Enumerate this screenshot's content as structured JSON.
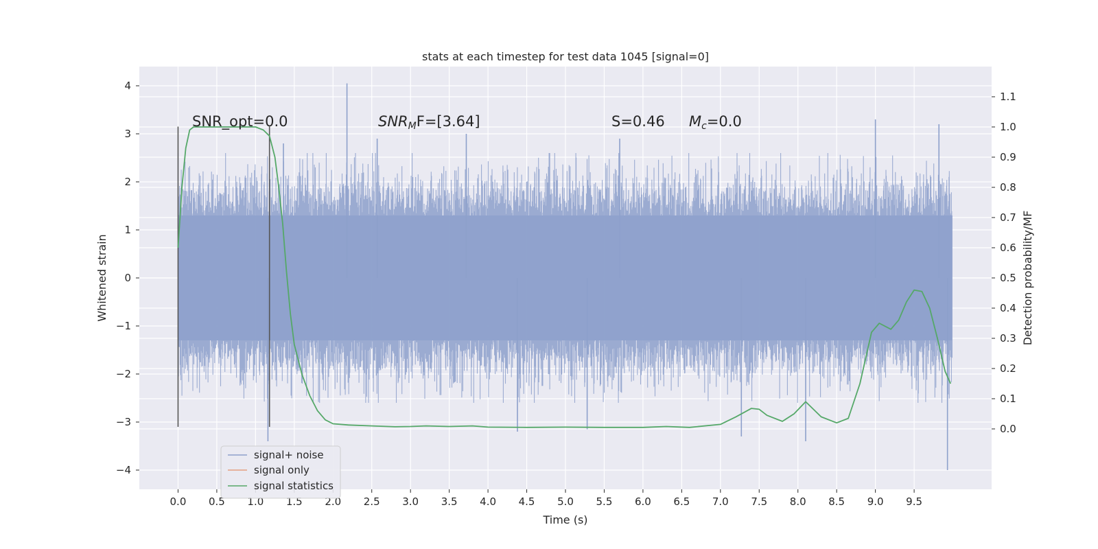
{
  "chart_data": {
    "type": "line",
    "title": "stats at each timestep for test data 1045 [signal=0]",
    "xlabel": "Time (s)",
    "ylabel_left": "Whitened strain",
    "ylabel_right": "Detection probability/MF",
    "xlim": [
      -0.5,
      10.5
    ],
    "ylim_left": [
      -4.4,
      4.4
    ],
    "ylim_right": [
      -0.2,
      1.2
    ],
    "xticks": [
      "0.0",
      "0.5",
      "1.0",
      "1.5",
      "2.0",
      "2.5",
      "3.0",
      "3.5",
      "4.0",
      "4.5",
      "5.0",
      "5.5",
      "6.0",
      "6.5",
      "7.0",
      "7.5",
      "8.0",
      "8.5",
      "9.0",
      "9.5"
    ],
    "yticks_left": [
      "4",
      "3",
      "2",
      "1",
      "0",
      "−1",
      "−2",
      "−3",
      "−4"
    ],
    "yticks_right": [
      "1.1",
      "1.0",
      "0.9",
      "0.8",
      "0.7",
      "0.6",
      "0.5",
      "0.4",
      "0.3",
      "0.2",
      "0.1",
      "0.0"
    ],
    "grid": true,
    "legend_position": "lower-left",
    "annotations": {
      "snr_opt": "SNR_opt=0.0",
      "snr_mf_pre": "SNR",
      "snr_mf_sub": "M",
      "snr_mf_post": "F=[3.64]",
      "s_val": "S=0.46",
      "mc_pre": "M",
      "mc_sub": "c",
      "mc_post": "=0.0"
    },
    "markers_x": [
      0.0,
      1.18
    ],
    "series": [
      {
        "name": "signal+ noise",
        "color": "#8da0cb",
        "axis": "left",
        "x_range": [
          0.0,
          9.99
        ],
        "envelope": [
          1.3,
          -1.3
        ],
        "extremes": [
          {
            "x": 2.18,
            "y": 4.05
          },
          {
            "x": 9.0,
            "y": 3.3
          },
          {
            "x": 9.82,
            "y": 3.2
          },
          {
            "x": 1.36,
            "y": 2.8
          },
          {
            "x": 2.57,
            "y": 2.9
          },
          {
            "x": 3.72,
            "y": 3.0
          },
          {
            "x": 5.7,
            "y": 2.9
          },
          {
            "x": 9.93,
            "y": -4.0
          },
          {
            "x": 1.16,
            "y": -3.4
          },
          {
            "x": 4.38,
            "y": -3.2
          },
          {
            "x": 5.28,
            "y": -3.15
          },
          {
            "x": 7.27,
            "y": -3.3
          },
          {
            "x": 8.1,
            "y": -3.4
          }
        ]
      },
      {
        "name": "signal only",
        "color": "#e5a07f",
        "axis": "left",
        "x": [],
        "y": []
      },
      {
        "name": "signal statistics",
        "color": "#55a868",
        "axis": "right",
        "x": [
          0.0,
          0.05,
          0.1,
          0.15,
          0.2,
          0.3,
          0.5,
          0.7,
          0.9,
          1.0,
          1.1,
          1.18,
          1.25,
          1.3,
          1.35,
          1.4,
          1.45,
          1.5,
          1.6,
          1.7,
          1.8,
          1.9,
          2.0,
          2.2,
          2.5,
          2.8,
          3.0,
          3.2,
          3.5,
          3.8,
          4.0,
          4.5,
          5.0,
          5.5,
          6.0,
          6.3,
          6.6,
          7.0,
          7.2,
          7.4,
          7.5,
          7.6,
          7.8,
          7.95,
          8.1,
          8.3,
          8.5,
          8.65,
          8.8,
          8.95,
          9.05,
          9.2,
          9.3,
          9.4,
          9.5,
          9.6,
          9.7,
          9.8,
          9.9,
          9.97
        ],
        "y": [
          0.6,
          0.8,
          0.93,
          0.99,
          1.0,
          1.0,
          1.0,
          1.0,
          1.0,
          1.0,
          0.99,
          0.97,
          0.9,
          0.8,
          0.68,
          0.52,
          0.38,
          0.28,
          0.18,
          0.11,
          0.06,
          0.03,
          0.017,
          0.013,
          0.01,
          0.007,
          0.008,
          0.01,
          0.008,
          0.01,
          0.006,
          0.005,
          0.006,
          0.005,
          0.005,
          0.008,
          0.005,
          0.015,
          0.04,
          0.068,
          0.065,
          0.045,
          0.025,
          0.05,
          0.09,
          0.04,
          0.02,
          0.035,
          0.15,
          0.32,
          0.35,
          0.33,
          0.36,
          0.42,
          0.46,
          0.455,
          0.4,
          0.3,
          0.19,
          0.15
        ]
      }
    ]
  }
}
